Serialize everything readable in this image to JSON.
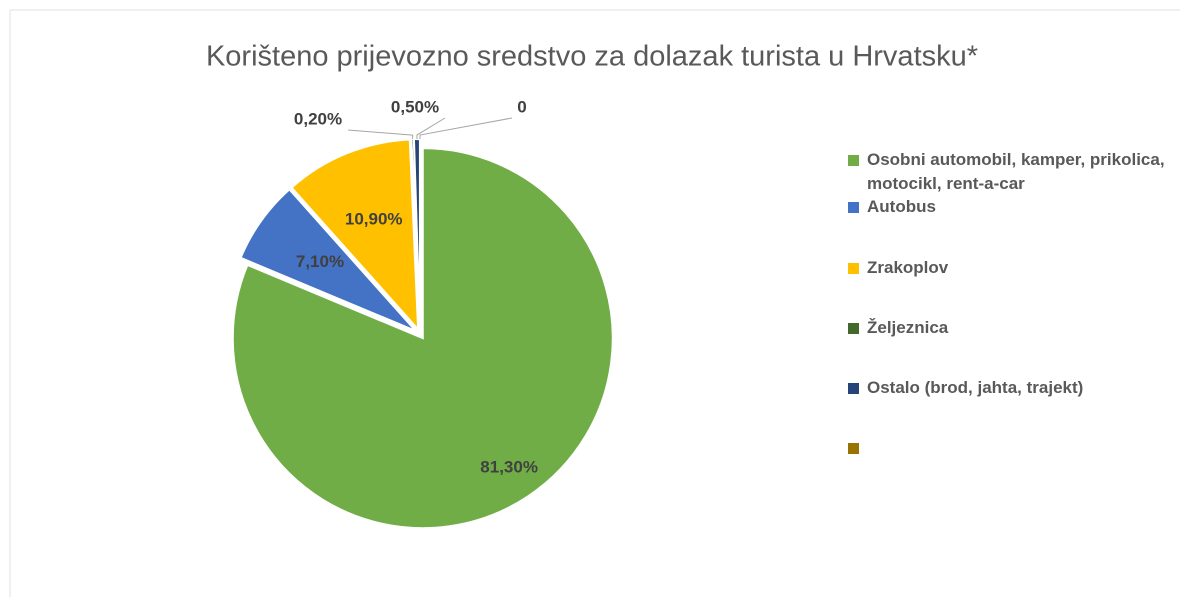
{
  "chart_data": {
    "type": "pie",
    "title": "Korišteno prijevozno sredstvo za dolazak turista u Hrvatsku*",
    "categories": [
      "Osobni automobil, kamper, prikolica, motocikl, rent-a-car",
      "Autobus",
      "Zrakoplov",
      "Željeznica",
      "Ostalo (brod, jahta, trajekt)",
      null
    ],
    "values": [
      81.3,
      7.1,
      10.9,
      0.2,
      0.5,
      0
    ],
    "value_labels": [
      "81,30%",
      "7,10%",
      "10,90%",
      "0,20%",
      "0,50%",
      "0"
    ],
    "colors": [
      "#70ad47",
      "#4472c4",
      "#ffc000",
      "#43682b",
      "#264478",
      "#997300"
    ],
    "legend": "right"
  }
}
